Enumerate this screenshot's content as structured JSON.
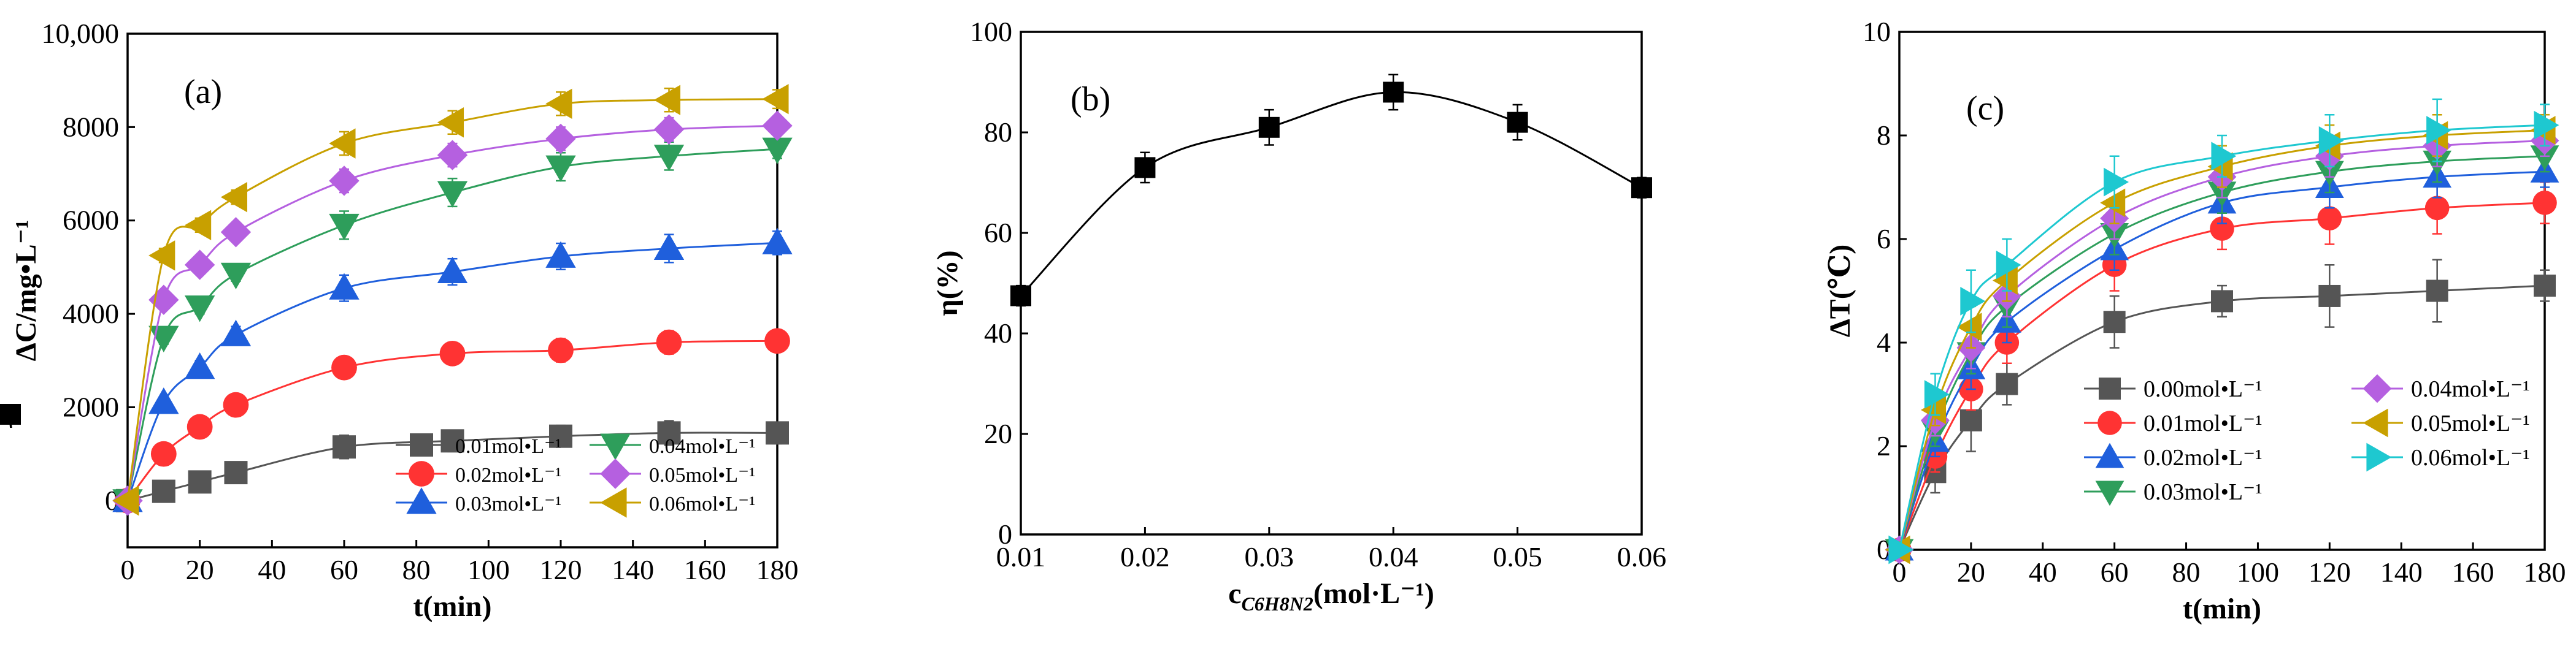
{
  "chart_data": [
    {
      "id": "a",
      "type": "line",
      "panel_label": "(a)",
      "xlabel": "t(min)",
      "ylabel": "ΔC/mg•L⁻¹",
      "xlim": [
        0,
        180
      ],
      "ylim": [
        -1000,
        10000
      ],
      "xticks": [
        0,
        20,
        40,
        60,
        80,
        100,
        120,
        140,
        160,
        180
      ],
      "yticks": [
        0,
        2000,
        4000,
        6000,
        8000,
        10000
      ],
      "ytick_labels": [
        "0",
        "2000",
        "4000",
        "6000",
        "8000",
        "10,000"
      ],
      "legend_position": "bottom-right",
      "legend_columns": 2,
      "x": [
        0,
        10,
        20,
        30,
        60,
        90,
        120,
        150,
        180
      ],
      "series": [
        {
          "name": "0.01mol•L⁻¹",
          "color": "#555555",
          "marker": "square",
          "values": [
            0,
            200,
            400,
            600,
            1150,
            1280,
            1380,
            1450,
            1450
          ],
          "errors": [
            0,
            80,
            100,
            100,
            250,
            230,
            230,
            260,
            230
          ]
        },
        {
          "name": "0.02mol•L⁻¹",
          "color": "#ff3333",
          "marker": "circle",
          "values": [
            0,
            1000,
            1580,
            2050,
            2850,
            3150,
            3220,
            3390,
            3420
          ],
          "errors": [
            0,
            100,
            100,
            120,
            230,
            230,
            250,
            250,
            200
          ]
        },
        {
          "name": "0.03mol•L⁻¹",
          "color": "#1f5fdc",
          "marker": "triangle-up",
          "values": [
            0,
            2100,
            2850,
            3550,
            4550,
            4900,
            5230,
            5400,
            5520
          ],
          "errors": [
            0,
            100,
            150,
            180,
            280,
            280,
            280,
            300,
            250
          ]
        },
        {
          "name": "0.04mol•L⁻¹",
          "color": "#2e9e5b",
          "marker": "triangle-down",
          "values": [
            0,
            3500,
            4150,
            4850,
            5900,
            6600,
            7150,
            7380,
            7530
          ],
          "errors": [
            0,
            150,
            150,
            150,
            300,
            300,
            300,
            300,
            200
          ]
        },
        {
          "name": "0.05mol•L⁻¹",
          "color": "#b560e0",
          "marker": "diamond",
          "values": [
            0,
            4300,
            5050,
            5750,
            6850,
            7400,
            7750,
            7950,
            8030
          ],
          "errors": [
            0,
            150,
            150,
            150,
            250,
            250,
            250,
            250,
            200
          ]
        },
        {
          "name": "0.06mol•L⁻¹",
          "color": "#c8a000",
          "marker": "triangle-left",
          "values": [
            0,
            5250,
            5900,
            6500,
            7650,
            8100,
            8500,
            8580,
            8600
          ],
          "errors": [
            0,
            150,
            150,
            150,
            250,
            250,
            250,
            250,
            200
          ]
        }
      ]
    },
    {
      "id": "b",
      "type": "line",
      "panel_label": "(b)",
      "xlabel": "c(mol·L⁻¹)",
      "xlabel_subscript": "C6H8N2",
      "ylabel": "η(%)",
      "xlim": [
        0.01,
        0.06
      ],
      "ylim": [
        0,
        100
      ],
      "xticks": [
        0.01,
        0.02,
        0.03,
        0.04,
        0.05,
        0.06
      ],
      "yticks": [
        0,
        20,
        40,
        60,
        80,
        100
      ],
      "legend_position": "center-right",
      "series": [
        {
          "name": "η",
          "color": "#000000",
          "marker": "square",
          "x": [
            0.01,
            0.02,
            0.03,
            0.04,
            0.05,
            0.06
          ],
          "values": [
            47.5,
            73,
            81,
            88,
            82,
            69
          ],
          "errors": [
            2,
            3,
            3.5,
            3.5,
            3.5,
            2
          ]
        }
      ]
    },
    {
      "id": "c",
      "type": "line",
      "panel_label": "(c)",
      "xlabel": "t(min)",
      "ylabel": "ΔT(℃)",
      "xlim": [
        0,
        180
      ],
      "ylim": [
        0,
        10
      ],
      "xticks": [
        0,
        20,
        40,
        60,
        80,
        100,
        120,
        140,
        160,
        180
      ],
      "yticks": [
        0,
        2,
        4,
        6,
        8,
        10
      ],
      "legend_position": "bottom-right",
      "legend_columns": 2,
      "x": [
        0,
        10,
        20,
        30,
        60,
        90,
        120,
        150,
        180
      ],
      "series": [
        {
          "name": "0.00mol•L⁻¹",
          "color": "#555555",
          "marker": "square",
          "values": [
            0,
            1.5,
            2.5,
            3.2,
            4.4,
            4.8,
            4.9,
            5.0,
            5.1
          ],
          "errors": [
            0,
            0.4,
            0.6,
            0.4,
            0.5,
            0.3,
            0.6,
            0.6,
            0.3
          ]
        },
        {
          "name": "0.01mol•L⁻¹",
          "color": "#ff3333",
          "marker": "circle",
          "values": [
            0,
            1.8,
            3.1,
            4.0,
            5.5,
            6.2,
            6.4,
            6.6,
            6.7
          ],
          "errors": [
            0,
            0.3,
            0.4,
            0.4,
            0.5,
            0.4,
            0.5,
            0.5,
            0.4
          ]
        },
        {
          "name": "0.02mol•L⁻¹",
          "color": "#1f5fdc",
          "marker": "triangle-up",
          "values": [
            0,
            2.1,
            3.5,
            4.4,
            5.8,
            6.7,
            7.0,
            7.2,
            7.3
          ],
          "errors": [
            0,
            0.3,
            0.4,
            0.4,
            0.4,
            0.4,
            0.4,
            0.4,
            0.3
          ]
        },
        {
          "name": "0.03mol•L⁻¹",
          "color": "#2e9e5b",
          "marker": "triangle-down",
          "values": [
            0,
            2.3,
            3.8,
            4.7,
            6.1,
            6.9,
            7.3,
            7.5,
            7.6
          ],
          "errors": [
            0,
            0.3,
            0.4,
            0.4,
            0.4,
            0.4,
            0.4,
            0.4,
            0.3
          ]
        },
        {
          "name": "0.04mol•L⁻¹",
          "color": "#b560e0",
          "marker": "diamond",
          "values": [
            0,
            2.5,
            3.9,
            4.9,
            6.4,
            7.2,
            7.6,
            7.8,
            7.9
          ],
          "errors": [
            0,
            0.3,
            0.4,
            0.4,
            0.4,
            0.4,
            0.4,
            0.4,
            0.3
          ]
        },
        {
          "name": "0.05mol•L⁻¹",
          "color": "#c8a000",
          "marker": "triangle-left",
          "values": [
            0,
            2.7,
            4.3,
            5.2,
            6.7,
            7.4,
            7.8,
            8.0,
            8.1
          ],
          "errors": [
            0,
            0.3,
            0.4,
            0.4,
            0.4,
            0.4,
            0.4,
            0.4,
            0.3
          ]
        },
        {
          "name": "0.06mol•L⁻¹",
          "color": "#1ec8d0",
          "marker": "triangle-right",
          "values": [
            0,
            3.0,
            4.8,
            5.5,
            7.1,
            7.6,
            7.9,
            8.1,
            8.2
          ],
          "errors": [
            0,
            0.4,
            0.6,
            0.5,
            0.5,
            0.4,
            0.5,
            0.6,
            0.4
          ]
        }
      ]
    }
  ]
}
